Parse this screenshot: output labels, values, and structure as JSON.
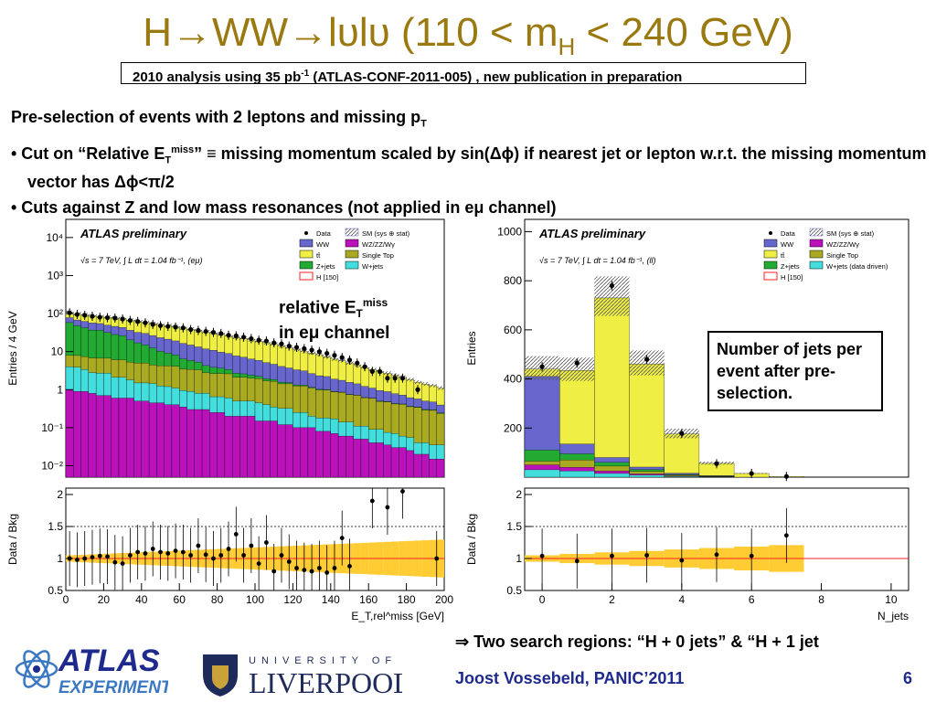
{
  "slide": {
    "title": "H→WW→lυlυ (110 < m",
    "title_sub": "H",
    "title_end": " < 240 GeV)",
    "subtitle_pre": "2010 analysis using 35 pb",
    "subtitle_sup": "-1",
    "subtitle_post": "  (ATLAS-CONF-2011-005) , new publication in preparation",
    "line1_pre": "Pre-selection of events with 2 leptons and missing p",
    "line1_sub": "T",
    "bullet1_a": "• Cut on “Relative E",
    "bullet1_sub": "T",
    "bullet1_sup": "miss",
    "bullet1_b": "” ≡ missing momentum scaled by sin(Δϕ) if nearest jet or lepton w.r.t. the missing momentum vector has Δϕ<π/2",
    "bullet2": "• Cuts against Z and low mass resonances (not applied in eμ channel)",
    "annot_left_1": "relative E",
    "annot_left_sub": "T",
    "annot_left_sup": "miss",
    "annot_left_2": "in eμ  channel",
    "annot_right": "Number of jets per event after pre-selection.",
    "search": "⇒ Two search regions: “H + 0 jets” &  “H + 1 jet",
    "author": "Joost Vossebeld, PANIC’2011",
    "page": "6",
    "atlas_logo_1": "ATLAS",
    "atlas_logo_2": "EXPERIMENT",
    "uni_logo_1": "UNIVERSITY OF",
    "uni_logo_2": "LIVERPOOL"
  },
  "colors": {
    "title": "#9a7a10",
    "footer": "#1e2a8c",
    "ww": "#6666cc",
    "tt": "#eeee44",
    "zjets": "#22aa33",
    "wz": "#bb11bb",
    "singletop": "#aaaa22",
    "wjets": "#44dddd",
    "higgs": "#ff2222",
    "band": "#ffcc33"
  },
  "chart_data": [
    {
      "type": "stacked-histogram",
      "label": "ATLAS preliminary",
      "energy": "√s = 7 TeV, ∫ L dt = 1.04 fb⁻¹, (eμ)",
      "ylabel": "Entries / 4 GeV",
      "ylog": true,
      "ylim": [
        0.005,
        30000
      ],
      "xlim": [
        0,
        200
      ],
      "yticks": [
        "10⁻²",
        "10⁻¹",
        "1",
        "10",
        "10²",
        "10³",
        "10⁴"
      ],
      "legend": [
        "Data",
        "SM (sys ⊕ stat)",
        "WW",
        "WZ/ZZ/Wγ",
        "tt̄",
        "Single Top",
        "Z+jets",
        "W+jets",
        "H [150]"
      ],
      "x_bin_edges": [
        0,
        4,
        8,
        12,
        16,
        20,
        24,
        28,
        32,
        36,
        40,
        44,
        48,
        52,
        56,
        60,
        64,
        68,
        72,
        76,
        80,
        84,
        88,
        92,
        96,
        100,
        104,
        108,
        112,
        116,
        120,
        124,
        128,
        132,
        136,
        140,
        144,
        148,
        152,
        156,
        160,
        164,
        168,
        172,
        176,
        180,
        184,
        188,
        192,
        196,
        200
      ],
      "stack_order": [
        "wz",
        "wjets",
        "singletop",
        "zjets",
        "ww",
        "tt"
      ],
      "series": [
        {
          "name": "WZ/ZZ/Wγ",
          "key": "wz",
          "values": [
            1,
            0.9,
            0.9,
            0.8,
            0.7,
            0.7,
            0.6,
            0.6,
            0.6,
            0.5,
            0.5,
            0.45,
            0.45,
            0.4,
            0.4,
            0.35,
            0.3,
            0.3,
            0.3,
            0.25,
            0.25,
            0.2,
            0.2,
            0.2,
            0.2,
            0.15,
            0.15,
            0.15,
            0.12,
            0.12,
            0.1,
            0.1,
            0.1,
            0.08,
            0.08,
            0.07,
            0.06,
            0.06,
            0.05,
            0.05,
            0.04,
            0.04,
            0.035,
            0.03,
            0.03,
            0.025,
            0.02,
            0.02,
            0.015,
            0.015
          ]
        },
        {
          "name": "W+jets",
          "key": "wjets",
          "values": [
            3,
            3,
            2.5,
            2,
            2,
            2,
            1.5,
            1.5,
            1.2,
            1,
            1,
            1,
            0.8,
            0.8,
            0.7,
            0.6,
            0.6,
            0.5,
            0.5,
            0.4,
            0.4,
            0.4,
            0.3,
            0.3,
            0.3,
            0.3,
            0.25,
            0.2,
            0.2,
            0.2,
            0.15,
            0.15,
            0.1,
            0.1,
            0.1,
            0.1,
            0.08,
            0.08,
            0.06,
            0.06,
            0.05,
            0.05,
            0.04,
            0.04,
            0.03,
            0.03,
            0.02,
            0.02,
            0.02,
            0.02
          ]
        },
        {
          "name": "Single Top",
          "key": "singletop",
          "values": [
            4,
            4,
            4,
            4,
            4,
            4,
            4,
            4,
            3.5,
            3.5,
            3.5,
            3,
            3,
            3,
            3,
            2.5,
            2.5,
            2.5,
            2,
            2,
            2,
            2,
            1.6,
            1.6,
            1.5,
            1.5,
            1.3,
            1.3,
            1.1,
            1.1,
            1,
            1,
            0.9,
            0.8,
            0.8,
            0.7,
            0.7,
            0.6,
            0.6,
            0.5,
            0.5,
            0.4,
            0.4,
            0.35,
            0.35,
            0.3,
            0.3,
            0.25,
            0.25,
            0.2
          ]
        },
        {
          "name": "Z+jets",
          "key": "zjets",
          "values": [
            50,
            40,
            35,
            30,
            30,
            25,
            22,
            20,
            15,
            12,
            10,
            8,
            6,
            5,
            4,
            3,
            2.5,
            2,
            1.5,
            1.2,
            1,
            0.8,
            0.6,
            0.5,
            0.4,
            0.3,
            0.25,
            0.2,
            0.15,
            0.1,
            0.08,
            0.06,
            0.05,
            0.04,
            0.03,
            0.02,
            0.02,
            0.01,
            0.01,
            0.01,
            0.01,
            0.01,
            0.01,
            0.01,
            0.01,
            0.01,
            0.01,
            0.01,
            0.01,
            0.01
          ]
        },
        {
          "name": "WW",
          "key": "ww",
          "values": [
            20,
            20,
            20,
            20,
            18,
            18,
            18,
            17,
            16,
            15,
            15,
            14,
            13,
            12,
            11,
            10,
            9,
            8,
            7.5,
            7,
            6,
            5.5,
            5,
            4.5,
            4,
            3.6,
            3.2,
            2.8,
            2.5,
            2.2,
            2,
            1.8,
            1.5,
            1.3,
            1.2,
            1,
            0.9,
            0.8,
            0.7,
            0.6,
            0.5,
            0.45,
            0.4,
            0.35,
            0.3,
            0.25,
            0.22,
            0.2,
            0.18,
            0.15
          ]
        },
        {
          "name": "tt̄",
          "key": "tt",
          "values": [
            30,
            30,
            30,
            30,
            30,
            30,
            30,
            30,
            30,
            30,
            30,
            28,
            28,
            27,
            26,
            25,
            24,
            22,
            21,
            20,
            19,
            17,
            16,
            15,
            14,
            13,
            12,
            11,
            10,
            9,
            8,
            7,
            6.5,
            6,
            5,
            4.5,
            4,
            3.5,
            3,
            2.6,
            2.3,
            2,
            1.8,
            1.6,
            1.4,
            1.2,
            1,
            0.9,
            0.8,
            0.7
          ]
        }
      ],
      "data_points": [
        [
          2,
          105
        ],
        [
          6,
          95
        ],
        [
          10,
          90
        ],
        [
          14,
          85
        ],
        [
          18,
          80
        ],
        [
          22,
          78
        ],
        [
          26,
          76
        ],
        [
          30,
          72
        ],
        [
          34,
          66
        ],
        [
          38,
          62
        ],
        [
          42,
          57
        ],
        [
          46,
          52
        ],
        [
          50,
          48
        ],
        [
          54,
          46
        ],
        [
          58,
          44
        ],
        [
          62,
          42
        ],
        [
          66,
          38
        ],
        [
          70,
          36
        ],
        [
          74,
          34
        ],
        [
          78,
          32
        ],
        [
          82,
          30
        ],
        [
          86,
          27
        ],
        [
          90,
          26
        ],
        [
          94,
          24
        ],
        [
          98,
          22
        ],
        [
          102,
          20
        ],
        [
          106,
          19
        ],
        [
          110,
          17
        ],
        [
          114,
          16
        ],
        [
          118,
          14
        ],
        [
          122,
          13
        ],
        [
          126,
          12
        ],
        [
          130,
          11
        ],
        [
          134,
          10
        ],
        [
          138,
          9
        ],
        [
          142,
          8
        ],
        [
          146,
          7
        ],
        [
          150,
          6
        ],
        [
          154,
          5
        ],
        [
          158,
          4
        ],
        [
          162,
          3
        ],
        [
          166,
          3
        ],
        [
          170,
          2
        ],
        [
          174,
          2
        ],
        [
          178,
          2
        ],
        [
          186,
          1
        ]
      ],
      "ratio": {
        "ylabel": "Data / Bkg",
        "ylim": [
          0.5,
          2.1
        ],
        "yticks": [
          0.5,
          1,
          1.5,
          2
        ],
        "xticks": [
          0,
          20,
          40,
          60,
          80,
          100,
          120,
          140,
          160,
          180,
          200
        ],
        "xlabel": "E_T,rel^miss [GeV]",
        "points": [
          [
            2,
            1.0
          ],
          [
            6,
            0.98
          ],
          [
            10,
            1.0
          ],
          [
            14,
            1.02
          ],
          [
            18,
            1.04
          ],
          [
            22,
            1.03
          ],
          [
            26,
            0.94
          ],
          [
            30,
            0.92
          ],
          [
            34,
            1.05
          ],
          [
            38,
            1.1
          ],
          [
            42,
            1.08
          ],
          [
            46,
            1.15
          ],
          [
            50,
            1.1
          ],
          [
            54,
            1.08
          ],
          [
            58,
            1.12
          ],
          [
            62,
            1.1
          ],
          [
            66,
            1.05
          ],
          [
            70,
            1.2
          ],
          [
            74,
            1.06
          ],
          [
            78,
            1.0
          ],
          [
            82,
            1.05
          ],
          [
            86,
            1.15
          ],
          [
            90,
            1.38
          ],
          [
            94,
            1.05
          ],
          [
            98,
            1.2
          ],
          [
            102,
            0.92
          ],
          [
            106,
            1.25
          ],
          [
            110,
            0.8
          ],
          [
            114,
            1.05
          ],
          [
            118,
            0.95
          ],
          [
            122,
            0.85
          ],
          [
            126,
            0.82
          ],
          [
            130,
            0.8
          ],
          [
            134,
            0.85
          ],
          [
            138,
            0.78
          ],
          [
            142,
            0.85
          ],
          [
            146,
            1.32
          ],
          [
            150,
            0.88
          ],
          [
            162,
            1.9
          ],
          [
            170,
            1.8
          ],
          [
            178,
            2.05
          ],
          [
            196,
            1.0
          ]
        ]
      }
    },
    {
      "type": "stacked-histogram",
      "label": "ATLAS preliminary",
      "energy": "√s = 7 TeV, ∫ L dt = 1.04 fb⁻¹, (ll)",
      "ylabel": "Entries",
      "ylim": [
        0,
        1050
      ],
      "xlim": [
        -0.5,
        10.5
      ],
      "yticks": [
        200,
        400,
        600,
        800,
        1000
      ],
      "legend": [
        "Data",
        "SM (sys ⊕ stat)",
        "WW",
        "WZ/ZZ/Wγ",
        "tt̄",
        "Single Top",
        "Z+jets",
        "W+jets (data driven)",
        "H [150]"
      ],
      "categories": [
        0,
        1,
        2,
        3,
        4,
        5,
        6,
        7,
        8,
        9,
        10
      ],
      "stack_order": [
        "wjets",
        "wz",
        "singletop",
        "zjets",
        "ww",
        "tt"
      ],
      "series": [
        {
          "name": "W+jets (data driven)",
          "key": "wjets",
          "values": [
            30,
            25,
            15,
            8,
            3,
            1,
            0,
            0,
            0,
            0,
            0
          ]
        },
        {
          "name": "WZ/ZZ/Wγ",
          "key": "wz",
          "values": [
            20,
            15,
            10,
            5,
            2,
            1,
            0,
            0,
            0,
            0,
            0
          ]
        },
        {
          "name": "Single Top",
          "key": "singletop",
          "values": [
            15,
            30,
            20,
            10,
            3,
            1,
            0,
            0,
            0,
            0,
            0
          ]
        },
        {
          "name": "Z+jets",
          "key": "zjets",
          "values": [
            45,
            25,
            15,
            8,
            3,
            1,
            0,
            0,
            0,
            0,
            0
          ]
        },
        {
          "name": "WW",
          "key": "ww",
          "values": [
            300,
            40,
            20,
            10,
            5,
            2,
            0,
            0,
            0,
            0,
            0
          ]
        },
        {
          "name": "tt̄",
          "key": "tt",
          "values": [
            30,
            300,
            650,
            420,
            160,
            50,
            15,
            3,
            0,
            0,
            0
          ]
        }
      ],
      "data_points": [
        [
          0,
          450
        ],
        [
          1,
          465
        ],
        [
          2,
          780
        ],
        [
          3,
          480
        ],
        [
          4,
          178
        ],
        [
          5,
          55
        ],
        [
          6,
          15
        ],
        [
          7,
          3
        ]
      ],
      "ratio": {
        "ylabel": "Data / Bkg",
        "ylim": [
          0.5,
          2.1
        ],
        "yticks": [
          0.5,
          1,
          1.5,
          2
        ],
        "xticks": [
          0,
          2,
          4,
          6,
          8,
          10
        ],
        "xlabel": "N_jets",
        "points": [
          [
            0,
            1.04
          ],
          [
            1,
            0.96
          ],
          [
            2,
            1.04
          ],
          [
            3,
            1.05
          ],
          [
            4,
            0.97
          ],
          [
            5,
            1.06
          ],
          [
            6,
            1.04
          ],
          [
            7,
            1.36
          ]
        ]
      }
    }
  ]
}
